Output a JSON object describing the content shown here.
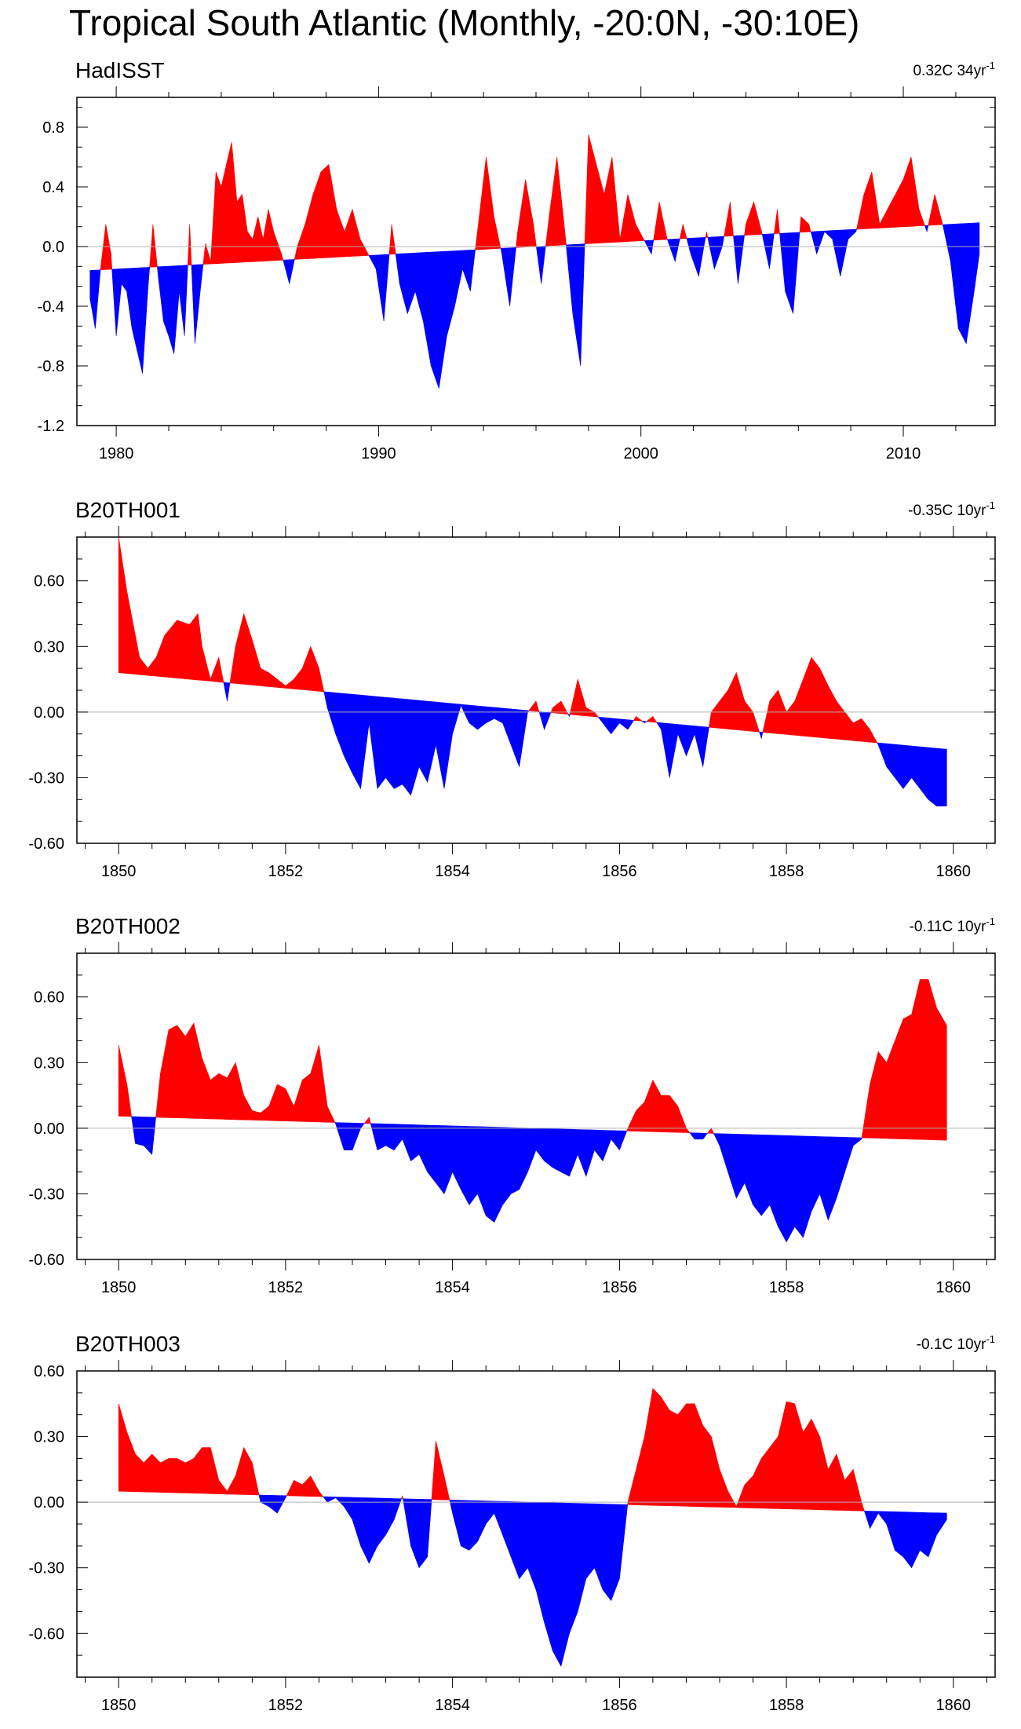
{
  "title": "Tropical South Atlantic (Monthly, -20:0N, -30:10E)",
  "colors": {
    "positive": "#ff0000",
    "negative": "#0000ff",
    "zero_line": "#b0b0b0",
    "axis": "#000000"
  },
  "chart_data": [
    {
      "type": "area",
      "name": "HadISST",
      "trend_label": "0.32C 34yr",
      "trend_sup": "-1",
      "xlim": [
        1978.5,
        2013.5
      ],
      "ylim": [
        -1.2,
        1.0
      ],
      "xticks": [
        1980,
        1990,
        2000,
        2010
      ],
      "xtick_labels": [
        "1980",
        "1990",
        "2000",
        "2010"
      ],
      "yticks": [
        -1.2,
        -0.8,
        -0.4,
        0.0,
        0.4,
        0.8
      ],
      "ytick_labels": [
        "-1.2",
        "-0.8",
        "-0.4",
        "0.0",
        "0.4",
        "0.8"
      ],
      "trend_line": {
        "start": [
          1979.0,
          -0.16
        ],
        "end": [
          2012.9,
          0.16
        ]
      },
      "series": {
        "x": [
          1979.0,
          1979.2,
          1979.4,
          1979.6,
          1979.8,
          1980.0,
          1980.2,
          1980.4,
          1980.6,
          1980.8,
          1981.0,
          1981.2,
          1981.4,
          1981.6,
          1981.8,
          1982.0,
          1982.2,
          1982.4,
          1982.6,
          1982.8,
          1983.0,
          1983.2,
          1983.4,
          1983.6,
          1983.8,
          1984.0,
          1984.2,
          1984.4,
          1984.6,
          1984.8,
          1985.0,
          1985.2,
          1985.4,
          1985.6,
          1985.8,
          1986.0,
          1986.3,
          1986.6,
          1986.9,
          1987.2,
          1987.5,
          1987.8,
          1988.1,
          1988.4,
          1988.7,
          1989.0,
          1989.3,
          1989.6,
          1989.9,
          1990.2,
          1990.5,
          1990.8,
          1991.1,
          1991.4,
          1991.7,
          1992.0,
          1992.3,
          1992.6,
          1992.9,
          1993.2,
          1993.5,
          1993.8,
          1994.1,
          1994.4,
          1994.7,
          1995.0,
          1995.3,
          1995.6,
          1995.9,
          1996.2,
          1996.5,
          1996.8,
          1997.1,
          1997.4,
          1997.7,
          1998.0,
          1998.3,
          1998.6,
          1998.9,
          1999.2,
          1999.5,
          1999.8,
          2000.1,
          2000.4,
          2000.7,
          2001.0,
          2001.3,
          2001.6,
          2001.9,
          2002.2,
          2002.5,
          2002.8,
          2003.1,
          2003.4,
          2003.7,
          2004.0,
          2004.3,
          2004.6,
          2004.9,
          2005.2,
          2005.5,
          2005.8,
          2006.1,
          2006.4,
          2006.7,
          2007.0,
          2007.3,
          2007.6,
          2007.9,
          2008.2,
          2008.5,
          2008.8,
          2009.1,
          2009.4,
          2009.7,
          2010.0,
          2010.3,
          2010.6,
          2010.9,
          2011.2,
          2011.5,
          2011.8,
          2012.1,
          2012.4,
          2012.7,
          2012.9
        ],
        "values": [
          -0.35,
          -0.55,
          -0.15,
          0.15,
          -0.05,
          -0.6,
          -0.25,
          -0.3,
          -0.55,
          -0.7,
          -0.85,
          -0.3,
          0.15,
          -0.2,
          -0.5,
          -0.6,
          -0.72,
          -0.3,
          -0.6,
          0.15,
          -0.65,
          -0.3,
          0.02,
          -0.1,
          0.5,
          0.4,
          0.55,
          0.7,
          0.3,
          0.35,
          0.1,
          0.05,
          0.2,
          0.05,
          0.25,
          0.1,
          -0.05,
          -0.25,
          0.0,
          0.15,
          0.35,
          0.5,
          0.55,
          0.25,
          0.1,
          0.25,
          0.05,
          -0.05,
          -0.15,
          -0.5,
          0.15,
          -0.25,
          -0.45,
          -0.3,
          -0.5,
          -0.8,
          -0.95,
          -0.6,
          -0.4,
          -0.15,
          -0.3,
          0.15,
          0.6,
          0.2,
          -0.05,
          -0.4,
          0.1,
          0.45,
          0.15,
          -0.25,
          0.2,
          0.6,
          0.1,
          -0.45,
          -0.8,
          0.75,
          0.55,
          0.35,
          0.6,
          0.05,
          0.35,
          0.15,
          0.05,
          -0.05,
          0.3,
          0.05,
          -0.1,
          0.15,
          -0.05,
          -0.2,
          0.1,
          -0.15,
          0.0,
          0.3,
          -0.25,
          0.15,
          0.3,
          0.1,
          -0.15,
          0.25,
          -0.3,
          -0.45,
          0.2,
          0.15,
          -0.05,
          0.1,
          0.05,
          -0.2,
          0.05,
          0.1,
          0.35,
          0.5,
          0.15,
          0.25,
          0.35,
          0.45,
          0.6,
          0.25,
          0.1,
          0.35,
          0.15,
          -0.1,
          -0.55,
          -0.65,
          -0.3,
          -0.05
        ]
      }
    },
    {
      "type": "area",
      "name": "B20TH001",
      "trend_label": "-0.35C 10yr",
      "trend_sup": "-1",
      "xlim": [
        1849.5,
        1860.5
      ],
      "ylim": [
        -0.6,
        0.8
      ],
      "xticks": [
        1850,
        1852,
        1854,
        1856,
        1858,
        1860
      ],
      "xtick_labels": [
        "1850",
        "1852",
        "1854",
        "1856",
        "1858",
        "1860"
      ],
      "yticks": [
        -0.6,
        -0.3,
        0.0,
        0.3,
        0.6
      ],
      "ytick_labels": [
        "-0.60",
        "-0.30",
        "0.00",
        "0.30",
        "0.60"
      ],
      "trend_line": {
        "start": [
          1850.0,
          0.18
        ],
        "end": [
          1859.92,
          -0.17
        ]
      },
      "series": {
        "x": [
          1850.0,
          1850.1,
          1850.25,
          1850.35,
          1850.45,
          1850.55,
          1850.7,
          1850.85,
          1850.95,
          1851.0,
          1851.1,
          1851.2,
          1851.3,
          1851.4,
          1851.5,
          1851.6,
          1851.7,
          1851.8,
          1851.9,
          1852.0,
          1852.1,
          1852.2,
          1852.3,
          1852.4,
          1852.5,
          1852.6,
          1852.7,
          1852.8,
          1852.9,
          1853.0,
          1853.1,
          1853.2,
          1853.3,
          1853.4,
          1853.5,
          1853.6,
          1853.7,
          1853.8,
          1853.9,
          1854.0,
          1854.1,
          1854.2,
          1854.3,
          1854.4,
          1854.5,
          1854.6,
          1854.7,
          1854.8,
          1854.9,
          1855.0,
          1855.1,
          1855.2,
          1855.3,
          1855.4,
          1855.5,
          1855.6,
          1855.7,
          1855.8,
          1855.9,
          1856.0,
          1856.1,
          1856.2,
          1856.3,
          1856.4,
          1856.5,
          1856.6,
          1856.7,
          1856.8,
          1856.9,
          1857.0,
          1857.1,
          1857.2,
          1857.3,
          1857.4,
          1857.5,
          1857.6,
          1857.7,
          1857.8,
          1857.9,
          1858.0,
          1858.1,
          1858.2,
          1858.3,
          1858.4,
          1858.5,
          1858.6,
          1858.7,
          1858.8,
          1858.9,
          1859.0,
          1859.1,
          1859.2,
          1859.3,
          1859.4,
          1859.5,
          1859.6,
          1859.7,
          1859.8,
          1859.92
        ],
        "values": [
          0.8,
          0.55,
          0.25,
          0.2,
          0.25,
          0.35,
          0.42,
          0.4,
          0.45,
          0.3,
          0.15,
          0.25,
          0.05,
          0.3,
          0.45,
          0.33,
          0.2,
          0.18,
          0.15,
          0.12,
          0.15,
          0.2,
          0.3,
          0.2,
          0.02,
          -0.1,
          -0.2,
          -0.28,
          -0.35,
          -0.05,
          -0.35,
          -0.3,
          -0.35,
          -0.33,
          -0.38,
          -0.25,
          -0.32,
          -0.15,
          -0.35,
          -0.1,
          0.03,
          -0.05,
          -0.08,
          -0.05,
          -0.03,
          -0.05,
          -0.15,
          -0.25,
          0.0,
          0.05,
          -0.08,
          0.02,
          0.05,
          -0.02,
          0.15,
          0.02,
          0.0,
          -0.05,
          -0.1,
          -0.05,
          -0.08,
          -0.02,
          -0.05,
          -0.02,
          -0.08,
          -0.3,
          -0.1,
          -0.2,
          -0.1,
          -0.25,
          0.0,
          0.05,
          0.1,
          0.18,
          0.05,
          0.0,
          -0.12,
          0.05,
          0.1,
          0.0,
          0.05,
          0.15,
          0.25,
          0.2,
          0.12,
          0.05,
          0.0,
          -0.05,
          -0.03,
          -0.08,
          -0.15,
          -0.25,
          -0.3,
          -0.35,
          -0.3,
          -0.35,
          -0.4,
          -0.43,
          -0.43
        ]
      }
    },
    {
      "type": "area",
      "name": "B20TH002",
      "trend_label": "-0.11C 10yr",
      "trend_sup": "-1",
      "xlim": [
        1849.5,
        1860.5
      ],
      "ylim": [
        -0.6,
        0.8
      ],
      "xticks": [
        1850,
        1852,
        1854,
        1856,
        1858,
        1860
      ],
      "xtick_labels": [
        "1850",
        "1852",
        "1854",
        "1856",
        "1858",
        "1860"
      ],
      "yticks": [
        -0.6,
        -0.3,
        0.0,
        0.3,
        0.6
      ],
      "ytick_labels": [
        "-0.60",
        "-0.30",
        "0.00",
        "0.30",
        "0.60"
      ],
      "trend_line": {
        "start": [
          1850.0,
          0.055
        ],
        "end": [
          1859.92,
          -0.055
        ]
      },
      "series": {
        "x": [
          1850.0,
          1850.1,
          1850.2,
          1850.3,
          1850.4,
          1850.5,
          1850.6,
          1850.7,
          1850.8,
          1850.9,
          1851.0,
          1851.1,
          1851.2,
          1851.3,
          1851.4,
          1851.5,
          1851.6,
          1851.7,
          1851.8,
          1851.9,
          1852.0,
          1852.1,
          1852.2,
          1852.3,
          1852.4,
          1852.5,
          1852.6,
          1852.7,
          1852.8,
          1852.9,
          1853.0,
          1853.1,
          1853.2,
          1853.3,
          1853.4,
          1853.5,
          1853.6,
          1853.7,
          1853.8,
          1853.9,
          1854.0,
          1854.1,
          1854.2,
          1854.3,
          1854.4,
          1854.5,
          1854.6,
          1854.7,
          1854.8,
          1854.9,
          1855.0,
          1855.1,
          1855.2,
          1855.3,
          1855.4,
          1855.5,
          1855.6,
          1855.7,
          1855.8,
          1855.9,
          1856.0,
          1856.1,
          1856.2,
          1856.3,
          1856.4,
          1856.5,
          1856.6,
          1856.7,
          1856.8,
          1856.9,
          1857.0,
          1857.1,
          1857.2,
          1857.3,
          1857.4,
          1857.5,
          1857.6,
          1857.7,
          1857.8,
          1857.9,
          1858.0,
          1858.1,
          1858.2,
          1858.3,
          1858.4,
          1858.5,
          1858.6,
          1858.7,
          1858.8,
          1858.9,
          1859.0,
          1859.1,
          1859.2,
          1859.3,
          1859.4,
          1859.5,
          1859.6,
          1859.7,
          1859.8,
          1859.92
        ],
        "values": [
          0.38,
          0.2,
          -0.07,
          -0.08,
          -0.12,
          0.25,
          0.45,
          0.47,
          0.42,
          0.48,
          0.32,
          0.22,
          0.25,
          0.23,
          0.3,
          0.15,
          0.08,
          0.07,
          0.1,
          0.2,
          0.18,
          0.1,
          0.22,
          0.25,
          0.38,
          0.1,
          0.02,
          -0.1,
          -0.1,
          0.0,
          0.05,
          -0.1,
          -0.08,
          -0.1,
          -0.05,
          -0.15,
          -0.12,
          -0.2,
          -0.25,
          -0.3,
          -0.2,
          -0.28,
          -0.35,
          -0.3,
          -0.4,
          -0.43,
          -0.35,
          -0.3,
          -0.28,
          -0.2,
          -0.1,
          -0.15,
          -0.18,
          -0.2,
          -0.22,
          -0.12,
          -0.22,
          -0.1,
          -0.15,
          -0.05,
          -0.1,
          0.0,
          0.08,
          0.12,
          0.22,
          0.15,
          0.15,
          0.1,
          0.0,
          -0.05,
          -0.05,
          0.0,
          -0.08,
          -0.2,
          -0.32,
          -0.25,
          -0.35,
          -0.4,
          -0.35,
          -0.45,
          -0.52,
          -0.45,
          -0.5,
          -0.38,
          -0.3,
          -0.42,
          -0.32,
          -0.2,
          -0.08,
          -0.05,
          0.2,
          0.35,
          0.3,
          0.4,
          0.5,
          0.52,
          0.68,
          0.68,
          0.55,
          0.47
        ]
      }
    },
    {
      "type": "area",
      "name": "B20TH003",
      "trend_label": "-0.1C 10yr",
      "trend_sup": "-1",
      "xlim": [
        1849.5,
        1860.5
      ],
      "ylim": [
        -0.8,
        0.6
      ],
      "xticks": [
        1850,
        1852,
        1854,
        1856,
        1858,
        1860
      ],
      "xtick_labels": [
        "1850",
        "1852",
        "1854",
        "1856",
        "1858",
        "1860"
      ],
      "yticks": [
        -0.6,
        -0.3,
        0.0,
        0.3,
        0.6
      ],
      "ytick_labels": [
        "-0.60",
        "-0.30",
        "0.00",
        "0.30",
        "0.60"
      ],
      "trend_line": {
        "start": [
          1850.0,
          0.05
        ],
        "end": [
          1859.92,
          -0.05
        ]
      },
      "series": {
        "x": [
          1850.0,
          1850.1,
          1850.2,
          1850.3,
          1850.4,
          1850.5,
          1850.6,
          1850.7,
          1850.8,
          1850.9,
          1851.0,
          1851.1,
          1851.2,
          1851.3,
          1851.4,
          1851.5,
          1851.6,
          1851.7,
          1851.8,
          1851.9,
          1852.0,
          1852.1,
          1852.2,
          1852.3,
          1852.4,
          1852.5,
          1852.6,
          1852.7,
          1852.8,
          1852.9,
          1853.0,
          1853.1,
          1853.2,
          1853.3,
          1853.4,
          1853.5,
          1853.6,
          1853.7,
          1853.8,
          1853.9,
          1854.0,
          1854.1,
          1854.2,
          1854.3,
          1854.4,
          1854.5,
          1854.6,
          1854.7,
          1854.8,
          1854.9,
          1855.0,
          1855.1,
          1855.2,
          1855.3,
          1855.4,
          1855.5,
          1855.6,
          1855.7,
          1855.8,
          1855.9,
          1856.0,
          1856.1,
          1856.2,
          1856.3,
          1856.4,
          1856.5,
          1856.6,
          1856.7,
          1856.8,
          1856.9,
          1857.0,
          1857.1,
          1857.2,
          1857.3,
          1857.4,
          1857.5,
          1857.6,
          1857.7,
          1857.8,
          1857.9,
          1858.0,
          1858.1,
          1858.2,
          1858.3,
          1858.4,
          1858.5,
          1858.6,
          1858.7,
          1858.8,
          1858.9,
          1859.0,
          1859.1,
          1859.2,
          1859.3,
          1859.4,
          1859.5,
          1859.6,
          1859.7,
          1859.8,
          1859.92
        ],
        "values": [
          0.45,
          0.32,
          0.22,
          0.18,
          0.22,
          0.18,
          0.2,
          0.2,
          0.18,
          0.2,
          0.25,
          0.25,
          0.1,
          0.05,
          0.12,
          0.25,
          0.18,
          0.0,
          -0.02,
          -0.05,
          0.02,
          0.1,
          0.08,
          0.12,
          0.05,
          0.0,
          0.02,
          -0.02,
          -0.08,
          -0.2,
          -0.28,
          -0.2,
          -0.15,
          -0.08,
          0.03,
          -0.2,
          -0.3,
          -0.25,
          0.28,
          0.12,
          -0.05,
          -0.2,
          -0.22,
          -0.18,
          -0.1,
          -0.05,
          -0.15,
          -0.25,
          -0.35,
          -0.3,
          -0.4,
          -0.55,
          -0.68,
          -0.75,
          -0.6,
          -0.5,
          -0.35,
          -0.3,
          -0.4,
          -0.45,
          -0.35,
          0.0,
          0.15,
          0.3,
          0.52,
          0.48,
          0.42,
          0.4,
          0.45,
          0.45,
          0.35,
          0.3,
          0.15,
          0.05,
          -0.02,
          0.08,
          0.12,
          0.2,
          0.25,
          0.3,
          0.46,
          0.45,
          0.32,
          0.38,
          0.3,
          0.15,
          0.22,
          0.1,
          0.15,
          0.0,
          -0.12,
          -0.05,
          -0.1,
          -0.22,
          -0.25,
          -0.3,
          -0.22,
          -0.25,
          -0.15,
          -0.08
        ]
      }
    }
  ]
}
